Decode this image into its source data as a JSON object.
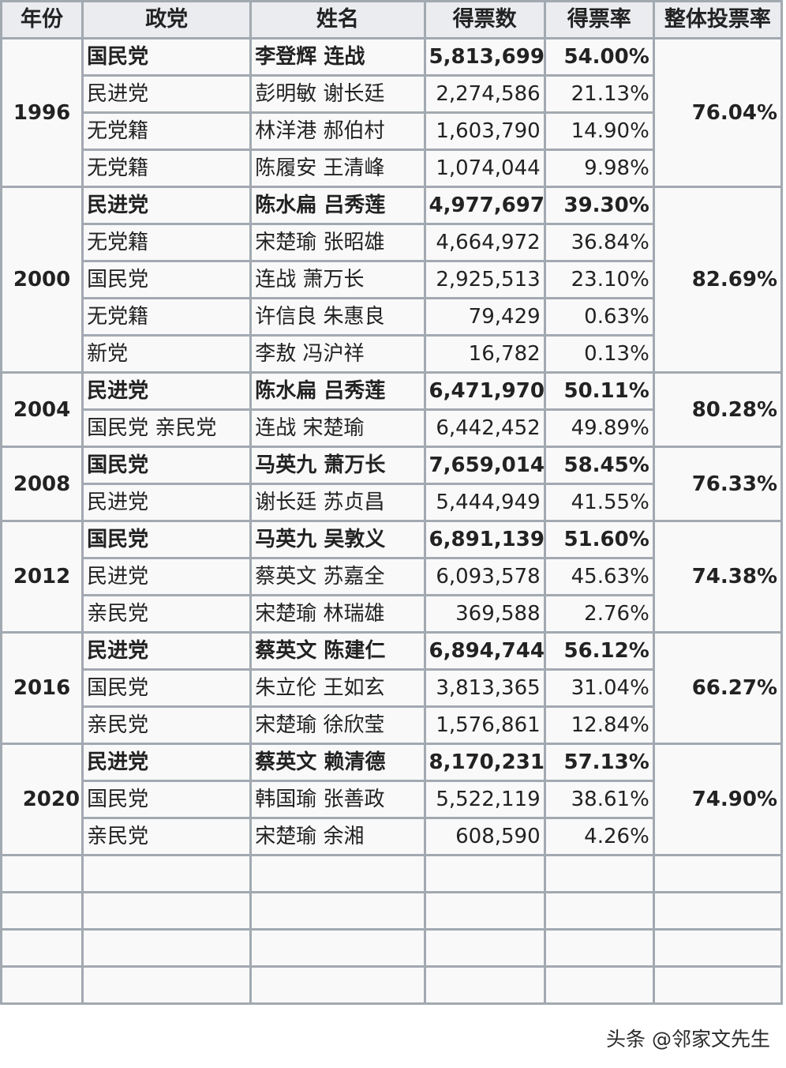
{
  "headers": [
    "年份",
    "政党",
    "姓名",
    "得票数",
    "得票率",
    "整体投票率"
  ],
  "elections": [
    {
      "year": "1996",
      "turnout": "76.04%",
      "rows": [
        {
          "party": "国民党",
          "name": "李登辉 连战",
          "votes": "5,813,699",
          "pct": "54.00%",
          "winner": true
        },
        {
          "party": "民进党",
          "name": "彭明敏 谢长廷",
          "votes": "2,274,586",
          "pct": "21.13%",
          "winner": false
        },
        {
          "party": "无党籍",
          "name": "林洋港 郝伯村",
          "votes": "1,603,790",
          "pct": "14.90%",
          "winner": false
        },
        {
          "party": "无党籍",
          "name": "陈履安 王清峰",
          "votes": "1,074,044",
          "pct": "9.98%",
          "winner": false
        }
      ]
    },
    {
      "year": "2000",
      "turnout": "82.69%",
      "rows": [
        {
          "party": "民进党",
          "name": "陈水扁 吕秀莲",
          "votes": "4,977,697",
          "pct": "39.30%",
          "winner": true
        },
        {
          "party": "无党籍",
          "name": "宋楚瑜 张昭雄",
          "votes": "4,664,972",
          "pct": "36.84%",
          "winner": false
        },
        {
          "party": "国民党",
          "name": "连战 萧万长",
          "votes": "2,925,513",
          "pct": "23.10%",
          "winner": false
        },
        {
          "party": "无党籍",
          "name": "许信良 朱惠良",
          "votes": "79,429",
          "pct": "0.63%",
          "winner": false
        },
        {
          "party": "新党",
          "name": "李敖 冯沪祥",
          "votes": "16,782",
          "pct": "0.13%",
          "winner": false
        }
      ]
    },
    {
      "year": "2004",
      "turnout": "80.28%",
      "rows": [
        {
          "party": "民进党",
          "name": "陈水扁 吕秀莲",
          "votes": "6,471,970",
          "pct": "50.11%",
          "winner": true
        },
        {
          "party": "国民党 亲民党",
          "name": "连战 宋楚瑜",
          "votes": "6,442,452",
          "pct": "49.89%",
          "winner": false
        }
      ]
    },
    {
      "year": "2008",
      "turnout": "76.33%",
      "rows": [
        {
          "party": "国民党",
          "name": "马英九 萧万长",
          "votes": "7,659,014",
          "pct": "58.45%",
          "winner": true
        },
        {
          "party": "民进党",
          "name": "谢长廷 苏贞昌",
          "votes": "5,444,949",
          "pct": "41.55%",
          "winner": false
        }
      ]
    },
    {
      "year": "2012",
      "turnout": "74.38%",
      "rows": [
        {
          "party": "国民党",
          "name": "马英九 吴敦义",
          "votes": "6,891,139",
          "pct": "51.60%",
          "winner": true
        },
        {
          "party": "民进党",
          "name": "蔡英文 苏嘉全",
          "votes": "6,093,578",
          "pct": "45.63%",
          "winner": false
        },
        {
          "party": "亲民党",
          "name": "宋楚瑜 林瑞雄",
          "votes": "369,588",
          "pct": "2.76%",
          "winner": false
        }
      ]
    },
    {
      "year": "2016",
      "turnout": "66.27%",
      "rows": [
        {
          "party": "民进党",
          "name": "蔡英文 陈建仁",
          "votes": "6,894,744",
          "pct": "56.12%",
          "winner": true
        },
        {
          "party": "国民党",
          "name": "朱立伦 王如玄",
          "votes": "3,813,365",
          "pct": "31.04%",
          "winner": false
        },
        {
          "party": "亲民党",
          "name": "宋楚瑜 徐欣莹",
          "votes": "1,576,861",
          "pct": "12.84%",
          "winner": false
        }
      ]
    },
    {
      "year": "2020",
      "turnout": "74.90%",
      "rows": [
        {
          "party": "民进党",
          "name": "蔡英文 赖清德",
          "votes": "8,170,231",
          "pct": "57.13%",
          "winner": true
        },
        {
          "party": "国民党",
          "name": "韩国瑜 张善政",
          "votes": "5,522,119",
          "pct": "38.61%",
          "winner": false
        },
        {
          "party": "亲民党",
          "name": "宋楚瑜 余湘",
          "votes": "608,590",
          "pct": "4.26%",
          "winner": false
        }
      ]
    }
  ],
  "empty_rows": 4,
  "watermark": "头条 @邻家文先生"
}
